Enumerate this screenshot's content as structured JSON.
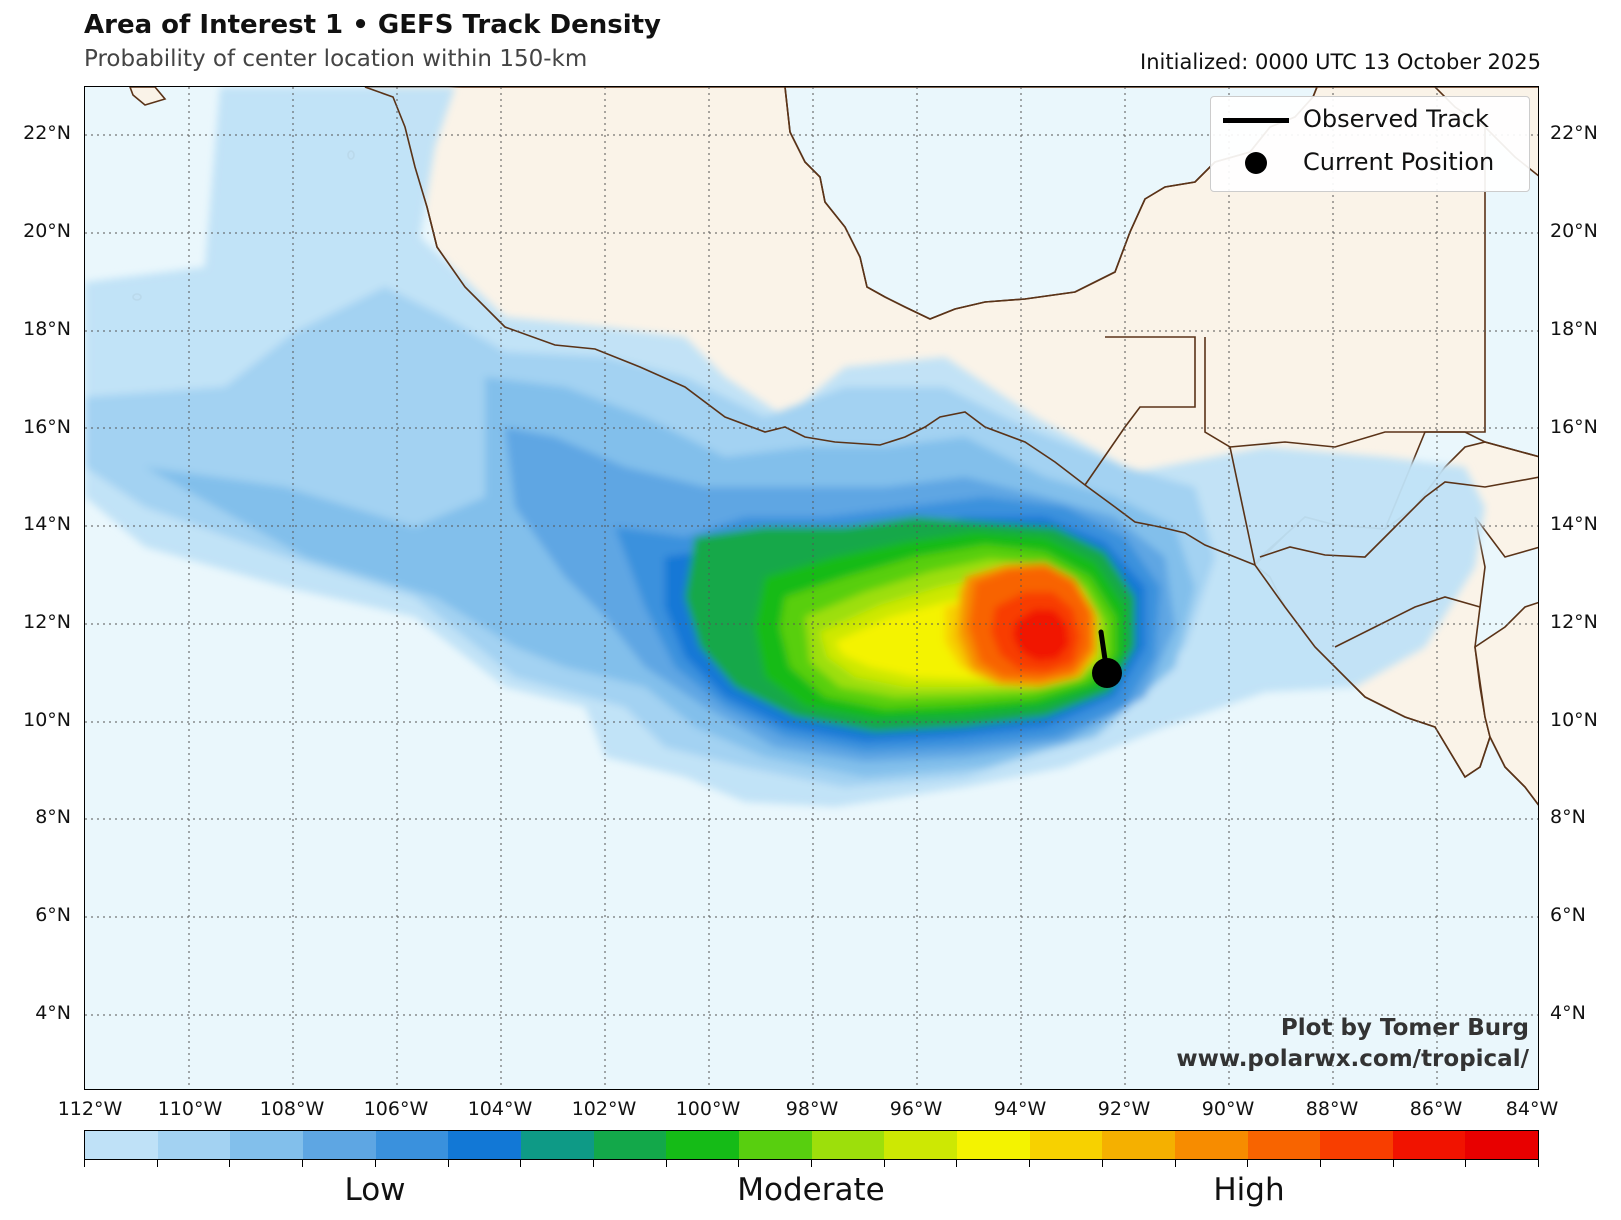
{
  "header": {
    "title": "Area of Interest 1 • GEFS Track Density",
    "subtitle": "Probability of center location within 150-km",
    "initialized": "Initialized: 0000 UTC 13 October 2025"
  },
  "legend": {
    "observed_track": "Observed Track",
    "current_position": "Current Position"
  },
  "credit": {
    "line1": "Plot by Tomer Burg",
    "line2": "www.polarwx.com/tropical/"
  },
  "axes": {
    "lat_labels": [
      "22°N",
      "20°N",
      "18°N",
      "16°N",
      "14°N",
      "12°N",
      "10°N",
      "8°N",
      "6°N",
      "4°N"
    ],
    "lon_labels": [
      "112°W",
      "110°W",
      "108°W",
      "106°W",
      "104°W",
      "102°W",
      "100°W",
      "98°W",
      "96°W",
      "94°W",
      "92°W",
      "90°W",
      "88°W",
      "86°W",
      "84°W"
    ]
  },
  "colorbar": {
    "labels": [
      "Low",
      "Moderate",
      "High"
    ],
    "colors": [
      "#bfe1f7",
      "#a3d2f2",
      "#82bfeb",
      "#5ea6e3",
      "#3a91dd",
      "#1278d6",
      "#0e9a86",
      "#13a84a",
      "#15bb17",
      "#58cf0f",
      "#9ddf0b",
      "#cde803",
      "#f4f300",
      "#f7d100",
      "#f5b000",
      "#f78c00",
      "#f86400",
      "#f83e00",
      "#f11300",
      "#e80000"
    ],
    "tick_count": 21
  },
  "map": {
    "ocean_color": "#eaf7fc",
    "land_color": "#faf3e8",
    "coast_color": "#5a3318",
    "lon_range": [
      -112,
      -84
    ],
    "lat_range": [
      3.3,
      23
    ],
    "current_position": {
      "lon": -92.0,
      "lat": 11.5
    },
    "observed_track": [
      {
        "lon": -92.15,
        "lat": 12.25
      },
      {
        "lon": -92.0,
        "lat": 11.5
      }
    ]
  }
}
